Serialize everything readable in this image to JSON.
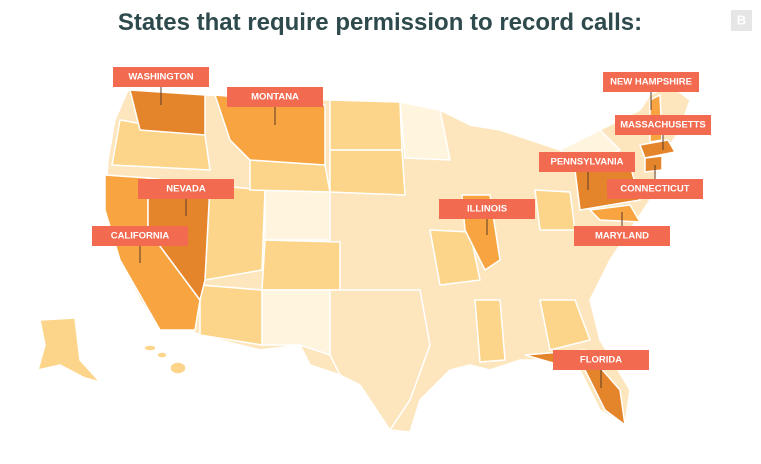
{
  "header": {
    "title": "States that require permission to record calls:",
    "badge": "B"
  },
  "labels": [
    "WASHINGTON",
    "MONTANA",
    "NEVADA",
    "CALIFORNIA",
    "ILLINOIS",
    "PENNSYLVANIA",
    "CONNECTICUT",
    "MARYLAND",
    "NEW HAMPSHIRE",
    "MASSACHUSETTS",
    "FLORIDA"
  ]
}
